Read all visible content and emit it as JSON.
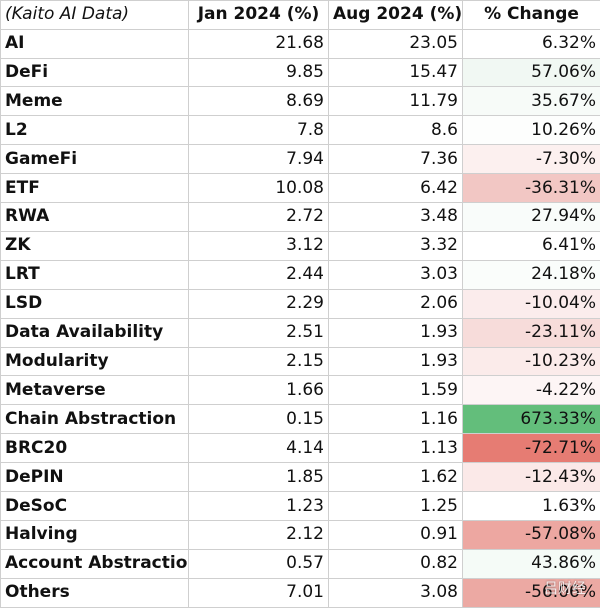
{
  "table": {
    "headers": [
      "(Kaito AI Data)",
      "Jan 2024 (%)",
      "Aug 2024 (%)",
      "% Change"
    ],
    "rows": [
      {
        "category": "AI",
        "jan": "21.68",
        "aug": "23.05",
        "change": "6.32%",
        "change_bg": "#ffffff"
      },
      {
        "category": "DeFi",
        "jan": "9.85",
        "aug": "15.47",
        "change": "57.06%",
        "change_bg": "#f1f8f3"
      },
      {
        "category": "Meme",
        "jan": "8.69",
        "aug": "11.79",
        "change": "35.67%",
        "change_bg": "#f7fbf8"
      },
      {
        "category": "L2",
        "jan": "7.8",
        "aug": "8.6",
        "change": "10.26%",
        "change_bg": "#fdfefd"
      },
      {
        "category": "GameFi",
        "jan": "7.94",
        "aug": "7.36",
        "change": "-7.30%",
        "change_bg": "#fcf0ef"
      },
      {
        "category": "ETF",
        "jan": "10.08",
        "aug": "6.42",
        "change": "-36.31%",
        "change_bg": "#f2c7c4"
      },
      {
        "category": "RWA",
        "jan": "2.72",
        "aug": "3.48",
        "change": "27.94%",
        "change_bg": "#f9fcfa"
      },
      {
        "category": "ZK",
        "jan": "3.12",
        "aug": "3.32",
        "change": "6.41%",
        "change_bg": "#ffffff"
      },
      {
        "category": "LRT",
        "jan": "2.44",
        "aug": "3.03",
        "change": "24.18%",
        "change_bg": "#fafdfb"
      },
      {
        "category": "LSD",
        "jan": "2.29",
        "aug": "2.06",
        "change": "-10.04%",
        "change_bg": "#fbecec"
      },
      {
        "category": "Data Availability",
        "jan": "2.51",
        "aug": "1.93",
        "change": "-23.11%",
        "change_bg": "#f7dcda"
      },
      {
        "category": "Modularity",
        "jan": "2.15",
        "aug": "1.93",
        "change": "-10.23%",
        "change_bg": "#fbebea"
      },
      {
        "category": "Metaverse",
        "jan": "1.66",
        "aug": "1.59",
        "change": "-4.22%",
        "change_bg": "#fdf5f5"
      },
      {
        "category": "Chain Abstraction",
        "jan": "0.15",
        "aug": "1.16",
        "change": "673.33%",
        "change_bg": "#63be7b"
      },
      {
        "category": "BRC20",
        "jan": "4.14",
        "aug": "1.13",
        "change": "-72.71%",
        "change_bg": "#e67c73"
      },
      {
        "category": "DePIN",
        "jan": "1.85",
        "aug": "1.62",
        "change": "-12.43%",
        "change_bg": "#fbe9e8"
      },
      {
        "category": "DeSoC",
        "jan": "1.23",
        "aug": "1.25",
        "change": "1.63%",
        "change_bg": "#ffffff"
      },
      {
        "category": "Halving",
        "jan": "2.12",
        "aug": "0.91",
        "change": "-57.08%",
        "change_bg": "#eda7a1"
      },
      {
        "category": "Account Abstraction",
        "jan": "0.57",
        "aug": "0.82",
        "change": "43.86%",
        "change_bg": "#f5fbf7"
      },
      {
        "category": "Others",
        "jan": "7.01",
        "aug": "3.08",
        "change": "-56.06%",
        "change_bg": "#eca9a3"
      }
    ]
  },
  "watermark": "吕财经"
}
